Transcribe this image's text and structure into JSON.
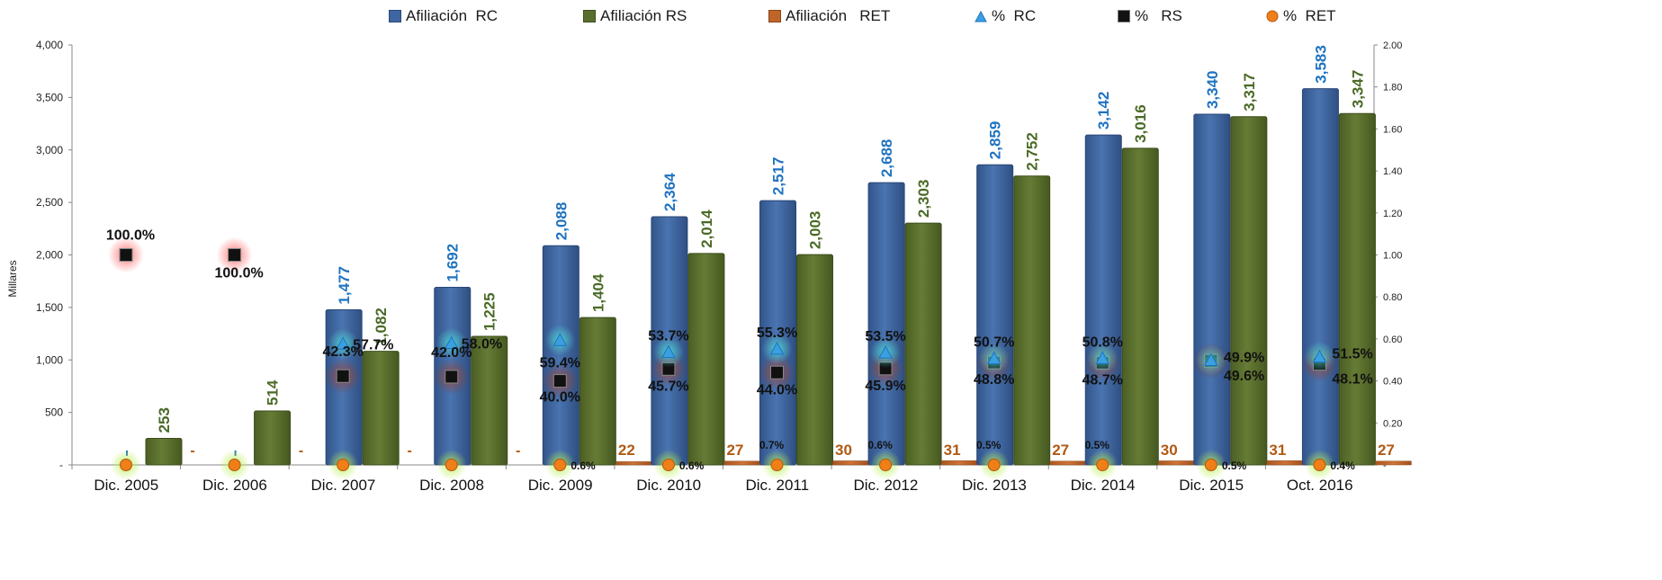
{
  "chart_data": {
    "type": "bar",
    "categories": [
      "Dic. 2005",
      "Dic. 2006",
      "Dic. 2007",
      "Dic. 2008",
      "Dic. 2009",
      "Dic. 2010",
      "Dic. 2011",
      "Dic. 2012",
      "Dic. 2013",
      "Dic. 2014",
      "Dic. 2015",
      "Oct. 2016"
    ],
    "ylabel": "Millares",
    "ylim": [
      0,
      4000
    ],
    "y_ticks": [
      "-",
      "500",
      "1,000",
      "1,500",
      "2,000",
      "2,500",
      "3,000",
      "3,500",
      "4,000"
    ],
    "y2lim": [
      0,
      2
    ],
    "y2_ticks": [
      "-",
      "0.20",
      "0.40",
      "0.60",
      "0.80",
      "1.00",
      "1.20",
      "1.40",
      "1.60",
      "1.80",
      "2.00"
    ],
    "grid": false,
    "legend_position": "top",
    "colors": {
      "rc": "#3f66a0",
      "rs": "#5a6e2d",
      "ret": "#c0652a",
      "pct_rc": "#3aa0e0",
      "pct_rs": "#111111",
      "pct_ret": "#f07f18",
      "rc_label": "#1f73c0",
      "rs_label": "#4a6a26",
      "ret_label": "#b05a14"
    },
    "series": [
      {
        "name": "Afiliación  RC",
        "kind": "bar",
        "axis": "left",
        "values": [
          0,
          0,
          1477,
          1692,
          2088,
          2364,
          2517,
          2688,
          2859,
          3142,
          3340,
          3583
        ],
        "labels": [
          "",
          "",
          "1,477",
          "1,692",
          "2,088",
          "2,364",
          "2,517",
          "2,688",
          "2,859",
          "3,142",
          "3,340",
          "3,583"
        ]
      },
      {
        "name": "Afiliación RS",
        "kind": "bar",
        "axis": "left",
        "values": [
          253,
          514,
          1082,
          1225,
          1404,
          2014,
          2003,
          2303,
          2752,
          3016,
          3317,
          3347
        ],
        "labels": [
          "253",
          "514",
          "1,082",
          "1,225",
          "1,404",
          "2,014",
          "2,003",
          "2,303",
          "2,752",
          "3,016",
          "3,317",
          "3,347"
        ]
      },
      {
        "name": "Afiliación   RET",
        "kind": "bar",
        "axis": "left",
        "values": [
          0,
          0,
          0,
          0,
          22,
          27,
          30,
          31,
          27,
          30,
          31,
          27
        ],
        "labels": [
          "-",
          "-",
          "-",
          "-",
          "22",
          "27",
          "30",
          "31",
          "27",
          "30",
          "31",
          "27"
        ]
      },
      {
        "name": "%  RC",
        "kind": "marker",
        "axis": "right",
        "values": [
          null,
          null,
          0.577,
          0.58,
          0.594,
          0.537,
          0.553,
          0.535,
          0.507,
          0.508,
          0.499,
          0.515
        ],
        "labels": [
          "",
          "",
          "57.7%",
          "58.0%",
          "59.4%",
          "53.7%",
          "55.3%",
          "53.5%",
          "50.7%",
          "50.8%",
          "49.9%",
          "51.5%"
        ]
      },
      {
        "name": "%   RS",
        "kind": "marker",
        "axis": "right",
        "values": [
          1.0,
          1.0,
          0.423,
          0.42,
          0.4,
          0.457,
          0.44,
          0.459,
          0.488,
          0.487,
          0.496,
          0.481
        ],
        "labels": [
          "100.0%",
          "100.0%",
          "42.3%",
          "42.0%",
          "40.0%",
          "45.7%",
          "44.0%",
          "45.9%",
          "48.8%",
          "48.7%",
          "49.6%",
          "48.1%"
        ]
      },
      {
        "name": "%  RET",
        "kind": "marker",
        "axis": "right",
        "values": [
          0,
          0,
          0,
          0,
          0.006,
          0.006,
          0.007,
          0.006,
          0.005,
          0.005,
          0.005,
          0.004
        ],
        "labels": [
          "",
          "",
          "",
          "",
          "0.6%",
          "0.6%",
          "0.7%",
          "0.6%",
          "0.5%",
          "0.5%",
          "0.5%",
          "0.4%"
        ]
      }
    ]
  }
}
